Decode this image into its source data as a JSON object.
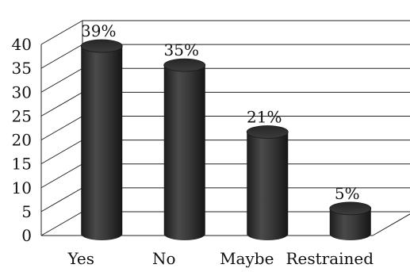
{
  "chart_data": {
    "type": "bar",
    "title": "",
    "xlabel": "",
    "ylabel": "",
    "categories": [
      "Yes",
      "No",
      "Maybe",
      "Restrained"
    ],
    "values": [
      39,
      35,
      21,
      5
    ],
    "data_labels": [
      "39%",
      "35%",
      "21%",
      "5%"
    ],
    "ylim": [
      0,
      40
    ],
    "yticks": [
      0,
      5,
      10,
      15,
      20,
      25,
      30,
      35,
      40
    ],
    "grid": true,
    "legend": "none",
    "bar_color": "#3a3a3a",
    "grid_color": "#222222"
  }
}
